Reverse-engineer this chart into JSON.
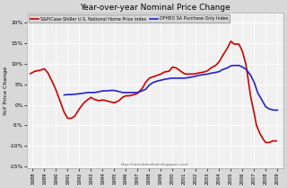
{
  "title": "Year-over-year Nominal Price Change",
  "ylabel": "YoY Price Change",
  "watermark": "http://calculatedrisk.blogspot.com/",
  "legend": [
    "S&P/Case-Shiller U.S. National Home Price Index",
    "OFHEO SA Purchase Only Index"
  ],
  "legend_colors": [
    "#cc0000",
    "#2222cc"
  ],
  "bg_color": "#d8d8d8",
  "plot_bg": "#f0f0f0",
  "xlim": [
    1987.5,
    2009.5
  ],
  "ylim": [
    -0.155,
    0.225
  ],
  "ytick_vals": [
    -0.15,
    -0.1,
    -0.05,
    0.0,
    0.05,
    0.1,
    0.15,
    0.2
  ],
  "xtick_vals": [
    1988,
    1989,
    1990,
    1991,
    1992,
    1993,
    1994,
    1995,
    1996,
    1997,
    1998,
    1999,
    2000,
    2001,
    2002,
    2003,
    2004,
    2005,
    2006,
    2007,
    2008,
    2009
  ],
  "cs_x": [
    1987.8,
    1988.2,
    1988.6,
    1989.0,
    1989.3,
    1989.7,
    1990.0,
    1990.4,
    1990.7,
    1991.0,
    1991.3,
    1991.6,
    1992.0,
    1992.4,
    1992.7,
    1993.0,
    1993.3,
    1993.7,
    1994.0,
    1994.3,
    1994.7,
    1995.0,
    1995.4,
    1995.7,
    1996.0,
    1996.3,
    1996.7,
    1997.0,
    1997.4,
    1997.7,
    1998.0,
    1998.3,
    1998.7,
    1999.0,
    1999.3,
    1999.7,
    2000.0,
    2000.3,
    2000.7,
    2001.0,
    2001.3,
    2001.7,
    2002.0,
    2002.3,
    2002.7,
    2003.0,
    2003.3,
    2003.7,
    2004.0,
    2004.3,
    2004.7,
    2005.0,
    2005.3,
    2005.7,
    2006.0,
    2006.3,
    2006.5,
    2006.7,
    2007.0,
    2007.2,
    2007.5,
    2007.8,
    2008.0,
    2008.3,
    2008.6,
    2008.9
  ],
  "cs_y": [
    0.076,
    0.082,
    0.084,
    0.088,
    0.078,
    0.055,
    0.036,
    0.005,
    -0.018,
    -0.033,
    -0.033,
    -0.028,
    -0.01,
    0.005,
    0.012,
    0.018,
    0.013,
    0.01,
    0.012,
    0.01,
    0.007,
    0.005,
    0.01,
    0.018,
    0.022,
    0.022,
    0.025,
    0.028,
    0.04,
    0.055,
    0.065,
    0.068,
    0.072,
    0.075,
    0.08,
    0.082,
    0.092,
    0.09,
    0.082,
    0.076,
    0.075,
    0.075,
    0.076,
    0.078,
    0.08,
    0.083,
    0.09,
    0.096,
    0.105,
    0.12,
    0.138,
    0.155,
    0.148,
    0.148,
    0.13,
    0.098,
    0.06,
    0.02,
    -0.02,
    -0.05,
    -0.07,
    -0.085,
    -0.092,
    -0.092,
    -0.088,
    -0.088
  ],
  "ofheo_x": [
    1990.7,
    1991.0,
    1991.3,
    1991.7,
    1992.0,
    1992.3,
    1992.7,
    1993.0,
    1993.3,
    1993.7,
    1994.0,
    1994.3,
    1994.7,
    1995.0,
    1995.3,
    1995.7,
    1996.0,
    1996.3,
    1996.7,
    1997.0,
    1997.3,
    1997.7,
    1998.0,
    1998.3,
    1998.7,
    1999.0,
    1999.3,
    1999.7,
    2000.0,
    2000.3,
    2000.7,
    2001.0,
    2001.3,
    2001.7,
    2002.0,
    2002.3,
    2002.7,
    2003.0,
    2003.3,
    2003.7,
    2004.0,
    2004.3,
    2004.7,
    2005.0,
    2005.3,
    2005.7,
    2006.0,
    2006.3,
    2006.7,
    2007.0,
    2007.3,
    2007.7,
    2008.0,
    2008.3,
    2008.7,
    2009.0
  ],
  "ofheo_y": [
    0.024,
    0.025,
    0.025,
    0.026,
    0.027,
    0.028,
    0.03,
    0.03,
    0.03,
    0.032,
    0.034,
    0.034,
    0.035,
    0.035,
    0.033,
    0.03,
    0.03,
    0.03,
    0.03,
    0.03,
    0.033,
    0.038,
    0.048,
    0.054,
    0.058,
    0.06,
    0.062,
    0.064,
    0.065,
    0.065,
    0.065,
    0.065,
    0.066,
    0.068,
    0.07,
    0.072,
    0.074,
    0.075,
    0.077,
    0.079,
    0.081,
    0.086,
    0.09,
    0.095,
    0.096,
    0.096,
    0.092,
    0.087,
    0.072,
    0.055,
    0.03,
    0.01,
    -0.005,
    -0.01,
    -0.013,
    -0.013
  ]
}
